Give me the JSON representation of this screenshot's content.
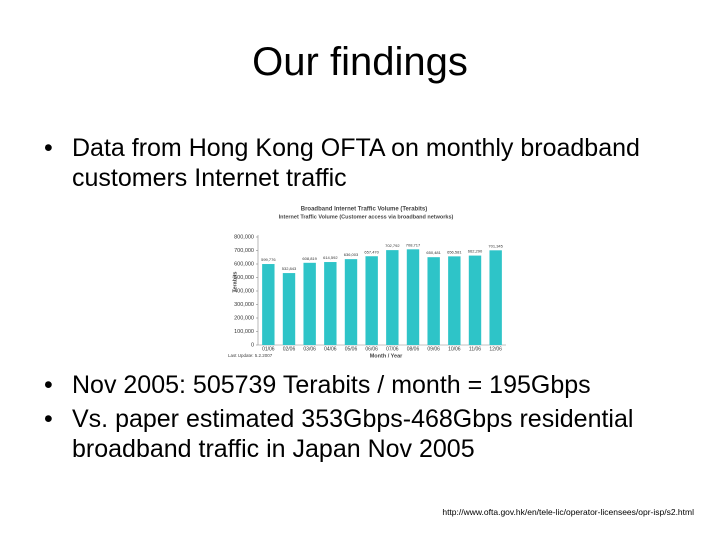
{
  "title": "Our findings",
  "bullets_top": [
    "Data from Hong Kong OFTA on monthly broadband customers Internet traffic"
  ],
  "bullets_bottom": [
    "Nov 2005: 505739 Terabits / month = 195Gbps",
    "Vs. paper estimated 353Gbps-468Gbps residential broadband traffic in Japan Nov 2005"
  ],
  "source_url": "http://www.ofta.gov.hk/en/tele-lic/operator-licensees/opr-isp/s2.html",
  "chart_data": {
    "type": "bar",
    "title": "Broadband Internet Traffic Volume (Terabits)",
    "subtitle": "Internet Traffic Volume (Customer access via broadband networks)",
    "y_label": "Terabits",
    "x_label": "Month / Year",
    "note": "Last Update: 5.2.2007",
    "categories": [
      "01/06",
      "02/06",
      "03/06",
      "04/06",
      "05/06",
      "06/06",
      "07/06",
      "08/06",
      "09/06",
      "10/06",
      "11/06",
      "12/06"
    ],
    "values": [
      599776,
      532843,
      608819,
      614592,
      636003,
      657470,
      702792,
      708717,
      650481,
      656581,
      662290,
      701345
    ],
    "value_labels": [
      "599,776",
      "532,843",
      "608,819",
      "614,592",
      "636,003",
      "657,470",
      "702,792",
      "708,717",
      "650,481",
      "656,581",
      "662,290",
      "701,345"
    ],
    "color": "#2ec4c8",
    "ylim": [
      0,
      800000
    ],
    "yticks": [
      0,
      {
        "value": 100000,
        "label": "100,000"
      },
      {
        "value": 200000,
        "label": "200,000"
      },
      {
        "value": 300000,
        "label": "300,000"
      },
      {
        "value": 400000,
        "label": "400,000"
      },
      {
        "value": 500000,
        "label": "500,000"
      },
      {
        "value": 600000,
        "label": "600,000"
      },
      {
        "value": 700000,
        "label": "700,000"
      },
      {
        "value": 800000,
        "label": "800,000"
      }
    ]
  }
}
